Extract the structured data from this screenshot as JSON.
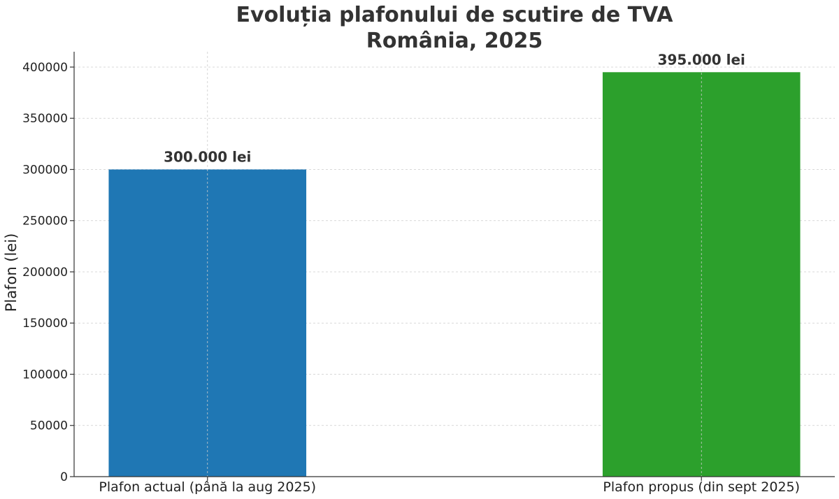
{
  "chart_data": {
    "type": "bar",
    "title": "Evoluția plafonului de scutire de TVA",
    "subtitle": "România, 2025",
    "xlabel": "",
    "ylabel": "Plafon (lei)",
    "categories": [
      "Plafon actual (până la aug 2025)",
      "Plafon propus (din sept 2025)"
    ],
    "values": [
      300000,
      395000
    ],
    "data_labels": [
      "300.000 lei",
      "395.000 lei"
    ],
    "bar_colors": [
      "#1f77b4",
      "#2ca02c"
    ],
    "ylim": [
      0,
      415000
    ],
    "yticks": [
      0,
      50000,
      100000,
      150000,
      200000,
      250000,
      300000,
      350000,
      400000
    ],
    "ytick_labels": [
      "0",
      "50000",
      "100000",
      "150000",
      "200000",
      "250000",
      "300000",
      "350000",
      "400000"
    ],
    "grid": true,
    "legend": "none"
  }
}
